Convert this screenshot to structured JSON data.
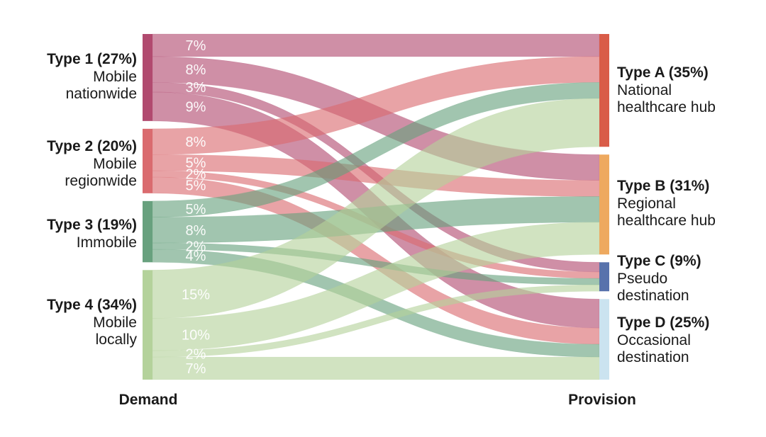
{
  "figure": {
    "background_color": "#ffffff",
    "text_color": "#1a1a1a",
    "flow_label_color": "#ffffff"
  },
  "chart_data": {
    "type": "sankey",
    "unit": "%",
    "left_header": "Demand",
    "right_header": "Provision",
    "left_nodes": [
      {
        "id": "T1",
        "title": "Type 1 (27%)",
        "subtitle": "Mobile\nnationwide",
        "value": 27,
        "color": "#b14a6f"
      },
      {
        "id": "T2",
        "title": "Type 2 (20%)",
        "subtitle": "Mobile\nregionwide",
        "value": 20,
        "color": "#da6b6f"
      },
      {
        "id": "T3",
        "title": "Type 3 (19%)",
        "subtitle": "Immobile",
        "value": 19,
        "color": "#68a17e"
      },
      {
        "id": "T4",
        "title": "Type 4 (34%)",
        "subtitle": "Mobile\nlocally",
        "value": 34,
        "color": "#b4d29b"
      }
    ],
    "right_nodes": [
      {
        "id": "A",
        "title": "Type A (35%)",
        "subtitle": "National\nhealthcare hub",
        "value": 35,
        "color": "#d95c48"
      },
      {
        "id": "B",
        "title": "Type B (31%)",
        "subtitle": "Regional\nhealthcare hub",
        "value": 31,
        "color": "#eea95f"
      },
      {
        "id": "C",
        "title": "Type C (9%)",
        "subtitle": "Pseudo\ndestination",
        "value": 9,
        "color": "#5872ac"
      },
      {
        "id": "D",
        "title": "Type D (25%)",
        "subtitle": "Occasional\ndestination",
        "value": 25,
        "color": "#cbe3f0"
      }
    ],
    "links": [
      {
        "source": "T1",
        "target": "A",
        "value": 7,
        "label": "7%"
      },
      {
        "source": "T1",
        "target": "B",
        "value": 8,
        "label": "8%"
      },
      {
        "source": "T1",
        "target": "C",
        "value": 3,
        "label": "3%"
      },
      {
        "source": "T1",
        "target": "D",
        "value": 9,
        "label": "9%"
      },
      {
        "source": "T2",
        "target": "A",
        "value": 8,
        "label": "8%"
      },
      {
        "source": "T2",
        "target": "B",
        "value": 5,
        "label": "5%"
      },
      {
        "source": "T2",
        "target": "C",
        "value": 2,
        "label": "2%"
      },
      {
        "source": "T2",
        "target": "D",
        "value": 5,
        "label": "5%"
      },
      {
        "source": "T3",
        "target": "A",
        "value": 5,
        "label": "5%"
      },
      {
        "source": "T3",
        "target": "B",
        "value": 8,
        "label": "8%"
      },
      {
        "source": "T3",
        "target": "C",
        "value": 2,
        "label": "2%"
      },
      {
        "source": "T3",
        "target": "D",
        "value": 4,
        "label": "4%"
      },
      {
        "source": "T4",
        "target": "A",
        "value": 15,
        "label": "15%"
      },
      {
        "source": "T4",
        "target": "B",
        "value": 10,
        "label": "10%"
      },
      {
        "source": "T4",
        "target": "C",
        "value": 2,
        "label": "2%"
      },
      {
        "source": "T4",
        "target": "D",
        "value": 7,
        "label": "7%"
      }
    ]
  }
}
